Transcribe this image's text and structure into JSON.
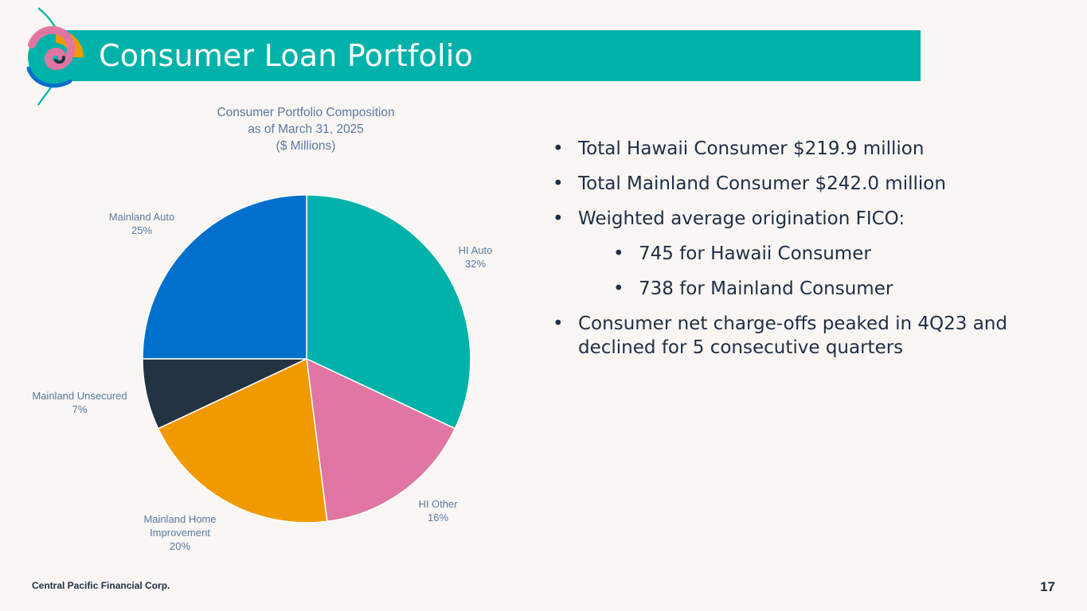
{
  "header": {
    "title": "Consumer Loan Portfolio"
  },
  "chart_data": {
    "type": "pie",
    "title_lines": [
      "Consumer Portfolio Composition",
      "as of March 31, 2025",
      "($ Millions)"
    ],
    "slices": [
      {
        "label_lines": [
          "HI Auto"
        ],
        "value": 32,
        "value_text": "32%",
        "color": "#00b2a9"
      },
      {
        "label_lines": [
          "HI Other"
        ],
        "value": 16,
        "value_text": "16%",
        "color": "#e076a2"
      },
      {
        "label_lines": [
          "Mainland Home",
          "Improvement"
        ],
        "value": 20,
        "value_text": "20%",
        "color": "#f09a00"
      },
      {
        "label_lines": [
          "Mainland Unsecured"
        ],
        "value": 7,
        "value_text": "7%",
        "color": "#243342"
      },
      {
        "label_lines": [
          "Mainland Auto"
        ],
        "value": 25,
        "value_text": "25%",
        "color": "#0070cc"
      }
    ]
  },
  "bullets": [
    {
      "text": "Total Hawaii Consumer $219.9 million",
      "level": 1
    },
    {
      "text": "Total Mainland Consumer $242.0 million",
      "level": 1
    },
    {
      "text": "Weighted average origination FICO:",
      "level": 1
    },
    {
      "text": "745 for Hawaii Consumer",
      "level": 2
    },
    {
      "text": "738 for Mainland Consumer",
      "level": 2
    },
    {
      "text": "Consumer net charge-offs peaked in 4Q23 and declined for 5 consecutive quarters",
      "level": 1
    }
  ],
  "footer": {
    "company": "Central Pacific Financial Corp.",
    "page": "17"
  },
  "colors": {
    "brand": "#00b2a9",
    "text": "#1e2e45",
    "label": "#5a7aa0",
    "background": "#f9f6f3"
  }
}
